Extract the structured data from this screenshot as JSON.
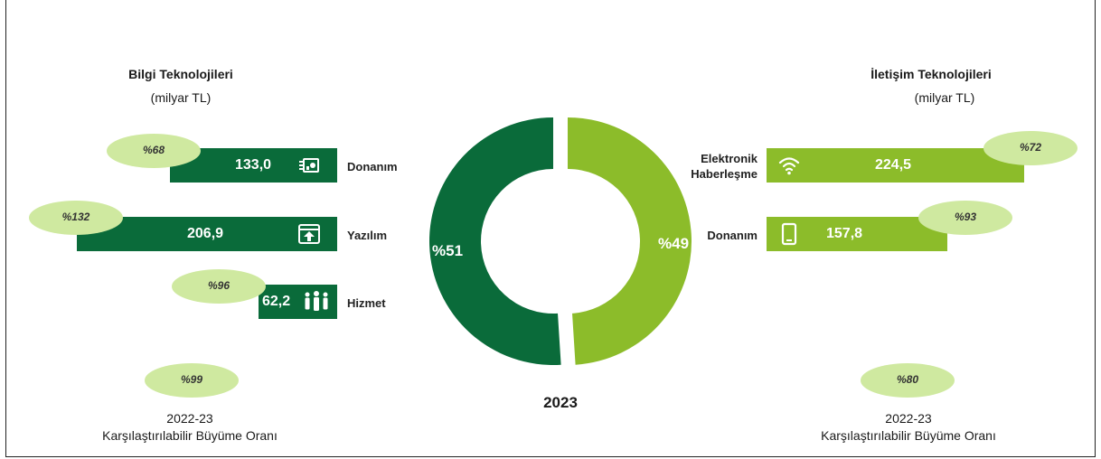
{
  "colors": {
    "dark_green": "#0a6b3a",
    "light_green": "#8cbc2a",
    "oval": "#cfe9a0"
  },
  "left": {
    "title": "Bilgi Teknolojileri",
    "unit": "(milyar TL)",
    "growth": "%99",
    "footer_line1": "2022-23",
    "footer_line2": "Karşılaştırılabilir Büyüme Oranı"
  },
  "right": {
    "title": "İletişim Teknolojileri",
    "unit": "(milyar TL)",
    "growth": "%80",
    "footer_line1": "2022-23",
    "footer_line2": "Karşılaştırılabilir Büyüme Oranı"
  },
  "chart_data": [
    {
      "type": "bar",
      "orientation": "horizontal",
      "title": "Bilgi Teknolojileri",
      "unit": "(milyar TL)",
      "categories": [
        "Donanım",
        "Yazılım",
        "Hizmet"
      ],
      "values": [
        133.0,
        206.9,
        62.2
      ],
      "value_labels": [
        "133,0",
        "206,9",
        "62,2"
      ],
      "growth_labels": [
        "%68",
        "%132",
        "%96"
      ],
      "icons": [
        "chip-icon",
        "software-window-icon",
        "people-icon"
      ]
    },
    {
      "type": "bar",
      "orientation": "horizontal",
      "title": "İletişim Teknolojileri",
      "unit": "(milyar TL)",
      "categories": [
        "Elektronik Haberleşme",
        "Donanım"
      ],
      "category_lines": [
        [
          "Elektronik",
          "Haberleşme"
        ],
        [
          "Donanım"
        ]
      ],
      "values": [
        224.5,
        157.8
      ],
      "value_labels": [
        "224,5",
        "157,8"
      ],
      "growth_labels": [
        "%72",
        "%93"
      ],
      "icons": [
        "wifi-icon",
        "phone-icon"
      ]
    },
    {
      "type": "pie",
      "donut": true,
      "year": "2023",
      "slices": [
        {
          "label": "%51",
          "value": 51,
          "color": "#0a6b3a"
        },
        {
          "label": "%49",
          "value": 49,
          "color": "#8cbc2a"
        }
      ]
    }
  ]
}
